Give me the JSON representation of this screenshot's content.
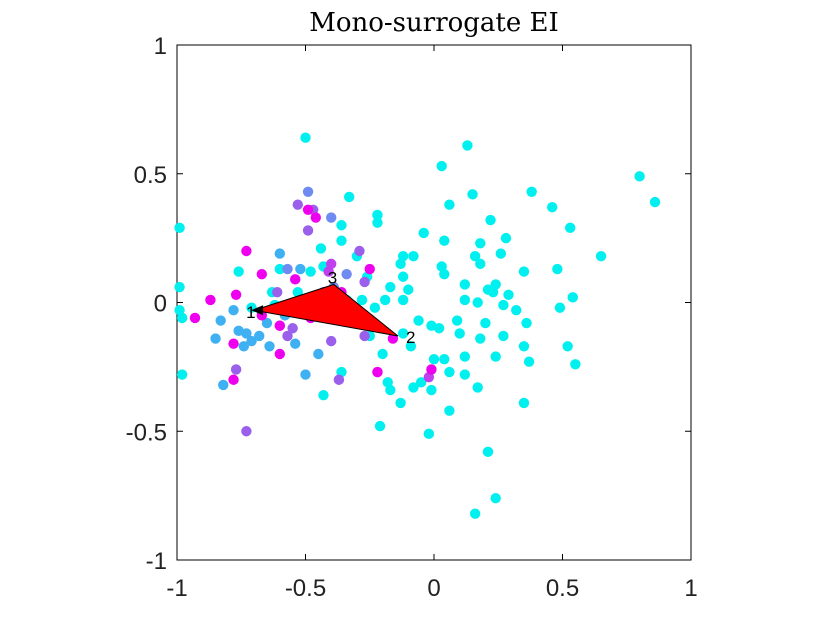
{
  "chart_data": {
    "type": "scatter",
    "title": "Mono-surrogate EI",
    "xlabel": "",
    "ylabel": "",
    "xlim": [
      -1,
      1
    ],
    "ylim": [
      -1,
      1
    ],
    "xticks": [
      -1,
      -0.5,
      0,
      0.5,
      1
    ],
    "yticks": [
      -1,
      -0.5,
      0,
      0.5,
      1
    ],
    "xtick_labels": [
      "-1",
      "-0.5",
      "0",
      "0.5",
      "1"
    ],
    "ytick_labels": [
      "-1",
      "-0.5",
      "0",
      "0.5",
      "1"
    ],
    "grid": false,
    "colors": {
      "cyan": "#00f0f0",
      "blue": "#3fb0f2",
      "indigo": "#6f8af0",
      "purple": "#9a60ec",
      "violet": "#c040ee",
      "magenta": "#ee00ee",
      "triangle_fill": "#ff0000",
      "triangle_edge": "#000000"
    },
    "points": [
      {
        "x": -0.5,
        "y": 0.64,
        "c": "cyan"
      },
      {
        "x": 0.13,
        "y": 0.61,
        "c": "cyan"
      },
      {
        "x": 0.03,
        "y": 0.53,
        "c": "cyan"
      },
      {
        "x": 0.8,
        "y": 0.49,
        "c": "cyan"
      },
      {
        "x": 0.86,
        "y": 0.39,
        "c": "cyan"
      },
      {
        "x": 0.38,
        "y": 0.43,
        "c": "cyan"
      },
      {
        "x": 0.15,
        "y": 0.42,
        "c": "cyan"
      },
      {
        "x": 0.06,
        "y": 0.38,
        "c": "cyan"
      },
      {
        "x": 0.46,
        "y": 0.37,
        "c": "cyan"
      },
      {
        "x": -0.33,
        "y": 0.41,
        "c": "cyan"
      },
      {
        "x": -0.22,
        "y": 0.34,
        "c": "cyan"
      },
      {
        "x": -0.22,
        "y": 0.31,
        "c": "cyan"
      },
      {
        "x": -0.36,
        "y": 0.3,
        "c": "cyan"
      },
      {
        "x": 0.22,
        "y": 0.32,
        "c": "cyan"
      },
      {
        "x": 0.53,
        "y": 0.29,
        "c": "cyan"
      },
      {
        "x": -0.99,
        "y": 0.29,
        "c": "cyan"
      },
      {
        "x": -0.04,
        "y": 0.27,
        "c": "cyan"
      },
      {
        "x": 0.28,
        "y": 0.25,
        "c": "cyan"
      },
      {
        "x": 0.04,
        "y": 0.24,
        "c": "cyan"
      },
      {
        "x": 0.18,
        "y": 0.23,
        "c": "cyan"
      },
      {
        "x": -0.44,
        "y": 0.21,
        "c": "cyan"
      },
      {
        "x": -0.36,
        "y": 0.24,
        "c": "cyan"
      },
      {
        "x": -0.12,
        "y": 0.18,
        "c": "cyan"
      },
      {
        "x": -0.08,
        "y": 0.18,
        "c": "cyan"
      },
      {
        "x": -0.13,
        "y": 0.15,
        "c": "cyan"
      },
      {
        "x": 0.16,
        "y": 0.18,
        "c": "cyan"
      },
      {
        "x": 0.26,
        "y": 0.19,
        "c": "cyan"
      },
      {
        "x": 0.65,
        "y": 0.18,
        "c": "cyan"
      },
      {
        "x": -0.3,
        "y": 0.18,
        "c": "cyan"
      },
      {
        "x": -0.43,
        "y": 0.14,
        "c": "cyan"
      },
      {
        "x": 0.03,
        "y": 0.14,
        "c": "cyan"
      },
      {
        "x": 0.18,
        "y": 0.15,
        "c": "cyan"
      },
      {
        "x": 0.35,
        "y": 0.12,
        "c": "cyan"
      },
      {
        "x": 0.48,
        "y": 0.13,
        "c": "cyan"
      },
      {
        "x": -0.6,
        "y": 0.13,
        "c": "cyan"
      },
      {
        "x": -0.48,
        "y": 0.12,
        "c": "cyan"
      },
      {
        "x": -0.26,
        "y": 0.1,
        "c": "cyan"
      },
      {
        "x": -0.12,
        "y": 0.1,
        "c": "cyan"
      },
      {
        "x": 0.04,
        "y": 0.11,
        "c": "cyan"
      },
      {
        "x": 0.12,
        "y": 0.07,
        "c": "cyan"
      },
      {
        "x": 0.24,
        "y": 0.07,
        "c": "cyan"
      },
      {
        "x": -0.17,
        "y": 0.06,
        "c": "cyan"
      },
      {
        "x": -0.1,
        "y": 0.05,
        "c": "cyan"
      },
      {
        "x": -0.63,
        "y": 0.04,
        "c": "cyan"
      },
      {
        "x": -0.53,
        "y": 0.04,
        "c": "cyan"
      },
      {
        "x": 0.21,
        "y": 0.05,
        "c": "cyan"
      },
      {
        "x": 0.23,
        "y": 0.04,
        "c": "cyan"
      },
      {
        "x": 0.29,
        "y": 0.03,
        "c": "cyan"
      },
      {
        "x": -0.99,
        "y": 0.06,
        "c": "cyan"
      },
      {
        "x": 0.54,
        "y": 0.02,
        "c": "cyan"
      },
      {
        "x": -0.34,
        "y": 0.01,
        "c": "cyan"
      },
      {
        "x": -0.28,
        "y": 0.01,
        "c": "cyan"
      },
      {
        "x": -0.19,
        "y": 0.01,
        "c": "cyan"
      },
      {
        "x": -0.12,
        "y": 0.01,
        "c": "cyan"
      },
      {
        "x": 0.12,
        "y": 0.01,
        "c": "cyan"
      },
      {
        "x": 0.17,
        "y": 0.0,
        "c": "cyan"
      },
      {
        "x": 0.27,
        "y": -0.01,
        "c": "cyan"
      },
      {
        "x": 0.32,
        "y": -0.03,
        "c": "cyan"
      },
      {
        "x": -0.71,
        "y": -0.02,
        "c": "cyan"
      },
      {
        "x": -0.62,
        "y": -0.01,
        "c": "cyan"
      },
      {
        "x": -0.56,
        "y": -0.02,
        "c": "cyan"
      },
      {
        "x": -0.99,
        "y": -0.03,
        "c": "cyan"
      },
      {
        "x": 0.49,
        "y": -0.02,
        "c": "cyan"
      },
      {
        "x": -0.98,
        "y": -0.06,
        "c": "cyan"
      },
      {
        "x": -0.06,
        "y": -0.07,
        "c": "cyan"
      },
      {
        "x": 0.09,
        "y": -0.07,
        "c": "cyan"
      },
      {
        "x": 0.2,
        "y": -0.08,
        "c": "cyan"
      },
      {
        "x": 0.36,
        "y": -0.08,
        "c": "cyan"
      },
      {
        "x": -0.01,
        "y": -0.09,
        "c": "cyan"
      },
      {
        "x": 0.02,
        "y": -0.1,
        "c": "cyan"
      },
      {
        "x": -0.21,
        "y": -0.1,
        "c": "cyan"
      },
      {
        "x": -0.12,
        "y": -0.12,
        "c": "cyan"
      },
      {
        "x": -0.25,
        "y": -0.13,
        "c": "cyan"
      },
      {
        "x": 0.1,
        "y": -0.12,
        "c": "cyan"
      },
      {
        "x": 0.18,
        "y": -0.14,
        "c": "cyan"
      },
      {
        "x": 0.27,
        "y": -0.13,
        "c": "cyan"
      },
      {
        "x": 0.52,
        "y": -0.17,
        "c": "cyan"
      },
      {
        "x": 0.35,
        "y": -0.17,
        "c": "cyan"
      },
      {
        "x": -0.09,
        "y": -0.17,
        "c": "cyan"
      },
      {
        "x": -0.2,
        "y": -0.2,
        "c": "cyan"
      },
      {
        "x": 0.12,
        "y": -0.21,
        "c": "cyan"
      },
      {
        "x": 0.24,
        "y": -0.21,
        "c": "cyan"
      },
      {
        "x": 0.0,
        "y": -0.22,
        "c": "cyan"
      },
      {
        "x": 0.04,
        "y": -0.22,
        "c": "cyan"
      },
      {
        "x": 0.37,
        "y": -0.23,
        "c": "cyan"
      },
      {
        "x": 0.55,
        "y": -0.24,
        "c": "cyan"
      },
      {
        "x": -0.36,
        "y": -0.27,
        "c": "cyan"
      },
      {
        "x": 0.06,
        "y": -0.27,
        "c": "cyan"
      },
      {
        "x": 0.12,
        "y": -0.28,
        "c": "cyan"
      },
      {
        "x": -0.98,
        "y": -0.28,
        "c": "cyan"
      },
      {
        "x": -0.18,
        "y": -0.31,
        "c": "cyan"
      },
      {
        "x": -0.05,
        "y": -0.31,
        "c": "cyan"
      },
      {
        "x": -0.17,
        "y": -0.34,
        "c": "cyan"
      },
      {
        "x": -0.08,
        "y": -0.33,
        "c": "cyan"
      },
      {
        "x": -0.01,
        "y": -0.34,
        "c": "cyan"
      },
      {
        "x": 0.17,
        "y": -0.33,
        "c": "cyan"
      },
      {
        "x": -0.43,
        "y": -0.36,
        "c": "cyan"
      },
      {
        "x": -0.13,
        "y": -0.39,
        "c": "cyan"
      },
      {
        "x": 0.35,
        "y": -0.39,
        "c": "cyan"
      },
      {
        "x": 0.06,
        "y": -0.42,
        "c": "cyan"
      },
      {
        "x": -0.21,
        "y": -0.48,
        "c": "cyan"
      },
      {
        "x": -0.02,
        "y": -0.51,
        "c": "cyan"
      },
      {
        "x": 0.21,
        "y": -0.58,
        "c": "cyan"
      },
      {
        "x": 0.24,
        "y": -0.76,
        "c": "cyan"
      },
      {
        "x": 0.16,
        "y": -0.82,
        "c": "cyan"
      },
      {
        "x": -0.76,
        "y": 0.12,
        "c": "cyan"
      },
      {
        "x": -0.23,
        "y": -0.02,
        "c": "cyan"
      },
      {
        "x": -0.27,
        "y": -0.05,
        "c": "cyan"
      },
      {
        "x": -0.49,
        "y": 0.43,
        "c": "indigo"
      },
      {
        "x": -0.4,
        "y": 0.33,
        "c": "indigo"
      },
      {
        "x": -0.57,
        "y": 0.13,
        "c": "indigo"
      },
      {
        "x": -0.34,
        "y": 0.11,
        "c": "indigo"
      },
      {
        "x": -0.39,
        "y": 0.06,
        "c": "indigo"
      },
      {
        "x": -0.6,
        "y": 0.19,
        "c": "blue"
      },
      {
        "x": -0.52,
        "y": 0.13,
        "c": "blue"
      },
      {
        "x": -0.78,
        "y": -0.03,
        "c": "blue"
      },
      {
        "x": -0.83,
        "y": -0.07,
        "c": "blue"
      },
      {
        "x": -0.65,
        "y": -0.08,
        "c": "blue"
      },
      {
        "x": -0.58,
        "y": -0.05,
        "c": "blue"
      },
      {
        "x": -0.76,
        "y": -0.11,
        "c": "blue"
      },
      {
        "x": -0.73,
        "y": -0.12,
        "c": "blue"
      },
      {
        "x": -0.68,
        "y": -0.13,
        "c": "blue"
      },
      {
        "x": -0.85,
        "y": -0.14,
        "c": "blue"
      },
      {
        "x": -0.74,
        "y": -0.17,
        "c": "blue"
      },
      {
        "x": -0.64,
        "y": -0.17,
        "c": "blue"
      },
      {
        "x": -0.54,
        "y": -0.16,
        "c": "blue"
      },
      {
        "x": -0.45,
        "y": -0.2,
        "c": "blue"
      },
      {
        "x": -0.82,
        "y": -0.32,
        "c": "blue"
      },
      {
        "x": -0.5,
        "y": -0.28,
        "c": "blue"
      },
      {
        "x": -0.71,
        "y": -0.15,
        "c": "blue"
      },
      {
        "x": -0.53,
        "y": 0.38,
        "c": "purple"
      },
      {
        "x": -0.47,
        "y": 0.36,
        "c": "purple"
      },
      {
        "x": -0.49,
        "y": 0.28,
        "c": "purple"
      },
      {
        "x": -0.29,
        "y": 0.2,
        "c": "purple"
      },
      {
        "x": -0.61,
        "y": 0.04,
        "c": "purple"
      },
      {
        "x": -0.27,
        "y": 0.08,
        "c": "purple"
      },
      {
        "x": -0.55,
        "y": -0.1,
        "c": "purple"
      },
      {
        "x": -0.4,
        "y": -0.15,
        "c": "purple"
      },
      {
        "x": -0.27,
        "y": -0.13,
        "c": "purple"
      },
      {
        "x": -0.37,
        "y": -0.3,
        "c": "purple"
      },
      {
        "x": -0.73,
        "y": -0.5,
        "c": "purple"
      },
      {
        "x": -0.77,
        "y": -0.26,
        "c": "purple"
      },
      {
        "x": -0.43,
        "y": 0.04,
        "c": "purple"
      },
      {
        "x": -0.57,
        "y": -0.13,
        "c": "purple"
      },
      {
        "x": -0.4,
        "y": 0.15,
        "c": "violet"
      },
      {
        "x": -0.22,
        "y": -0.27,
        "c": "violet"
      },
      {
        "x": -0.6,
        "y": -0.09,
        "c": "violet"
      },
      {
        "x": -0.41,
        "y": 0.12,
        "c": "violet"
      },
      {
        "x": -0.02,
        "y": -0.29,
        "c": "violet"
      },
      {
        "x": -0.49,
        "y": 0.36,
        "c": "magenta"
      },
      {
        "x": -0.46,
        "y": 0.33,
        "c": "magenta"
      },
      {
        "x": -0.73,
        "y": 0.2,
        "c": "magenta"
      },
      {
        "x": -0.67,
        "y": 0.11,
        "c": "magenta"
      },
      {
        "x": -0.54,
        "y": 0.09,
        "c": "magenta"
      },
      {
        "x": -0.25,
        "y": 0.13,
        "c": "magenta"
      },
      {
        "x": -0.87,
        "y": 0.01,
        "c": "magenta"
      },
      {
        "x": -0.77,
        "y": 0.03,
        "c": "magenta"
      },
      {
        "x": -0.67,
        "y": -0.05,
        "c": "magenta"
      },
      {
        "x": -0.93,
        "y": -0.06,
        "c": "magenta"
      },
      {
        "x": -0.6,
        "y": -0.09,
        "c": "magenta"
      },
      {
        "x": -0.78,
        "y": -0.16,
        "c": "magenta"
      },
      {
        "x": -0.6,
        "y": -0.2,
        "c": "magenta"
      },
      {
        "x": -0.48,
        "y": -0.06,
        "c": "magenta"
      },
      {
        "x": -0.78,
        "y": -0.3,
        "c": "magenta"
      },
      {
        "x": -0.22,
        "y": -0.27,
        "c": "magenta"
      },
      {
        "x": -0.01,
        "y": -0.26,
        "c": "magenta"
      },
      {
        "x": -0.16,
        "y": -0.14,
        "c": "magenta"
      },
      {
        "x": -0.36,
        "y": 0.04,
        "c": "magenta"
      }
    ],
    "triangle": {
      "vertices": [
        {
          "x": -0.7,
          "y": -0.03
        },
        {
          "x": -0.14,
          "y": -0.13
        },
        {
          "x": -0.39,
          "y": 0.07
        }
      ],
      "labels": [
        "1",
        "2",
        "3"
      ]
    }
  }
}
